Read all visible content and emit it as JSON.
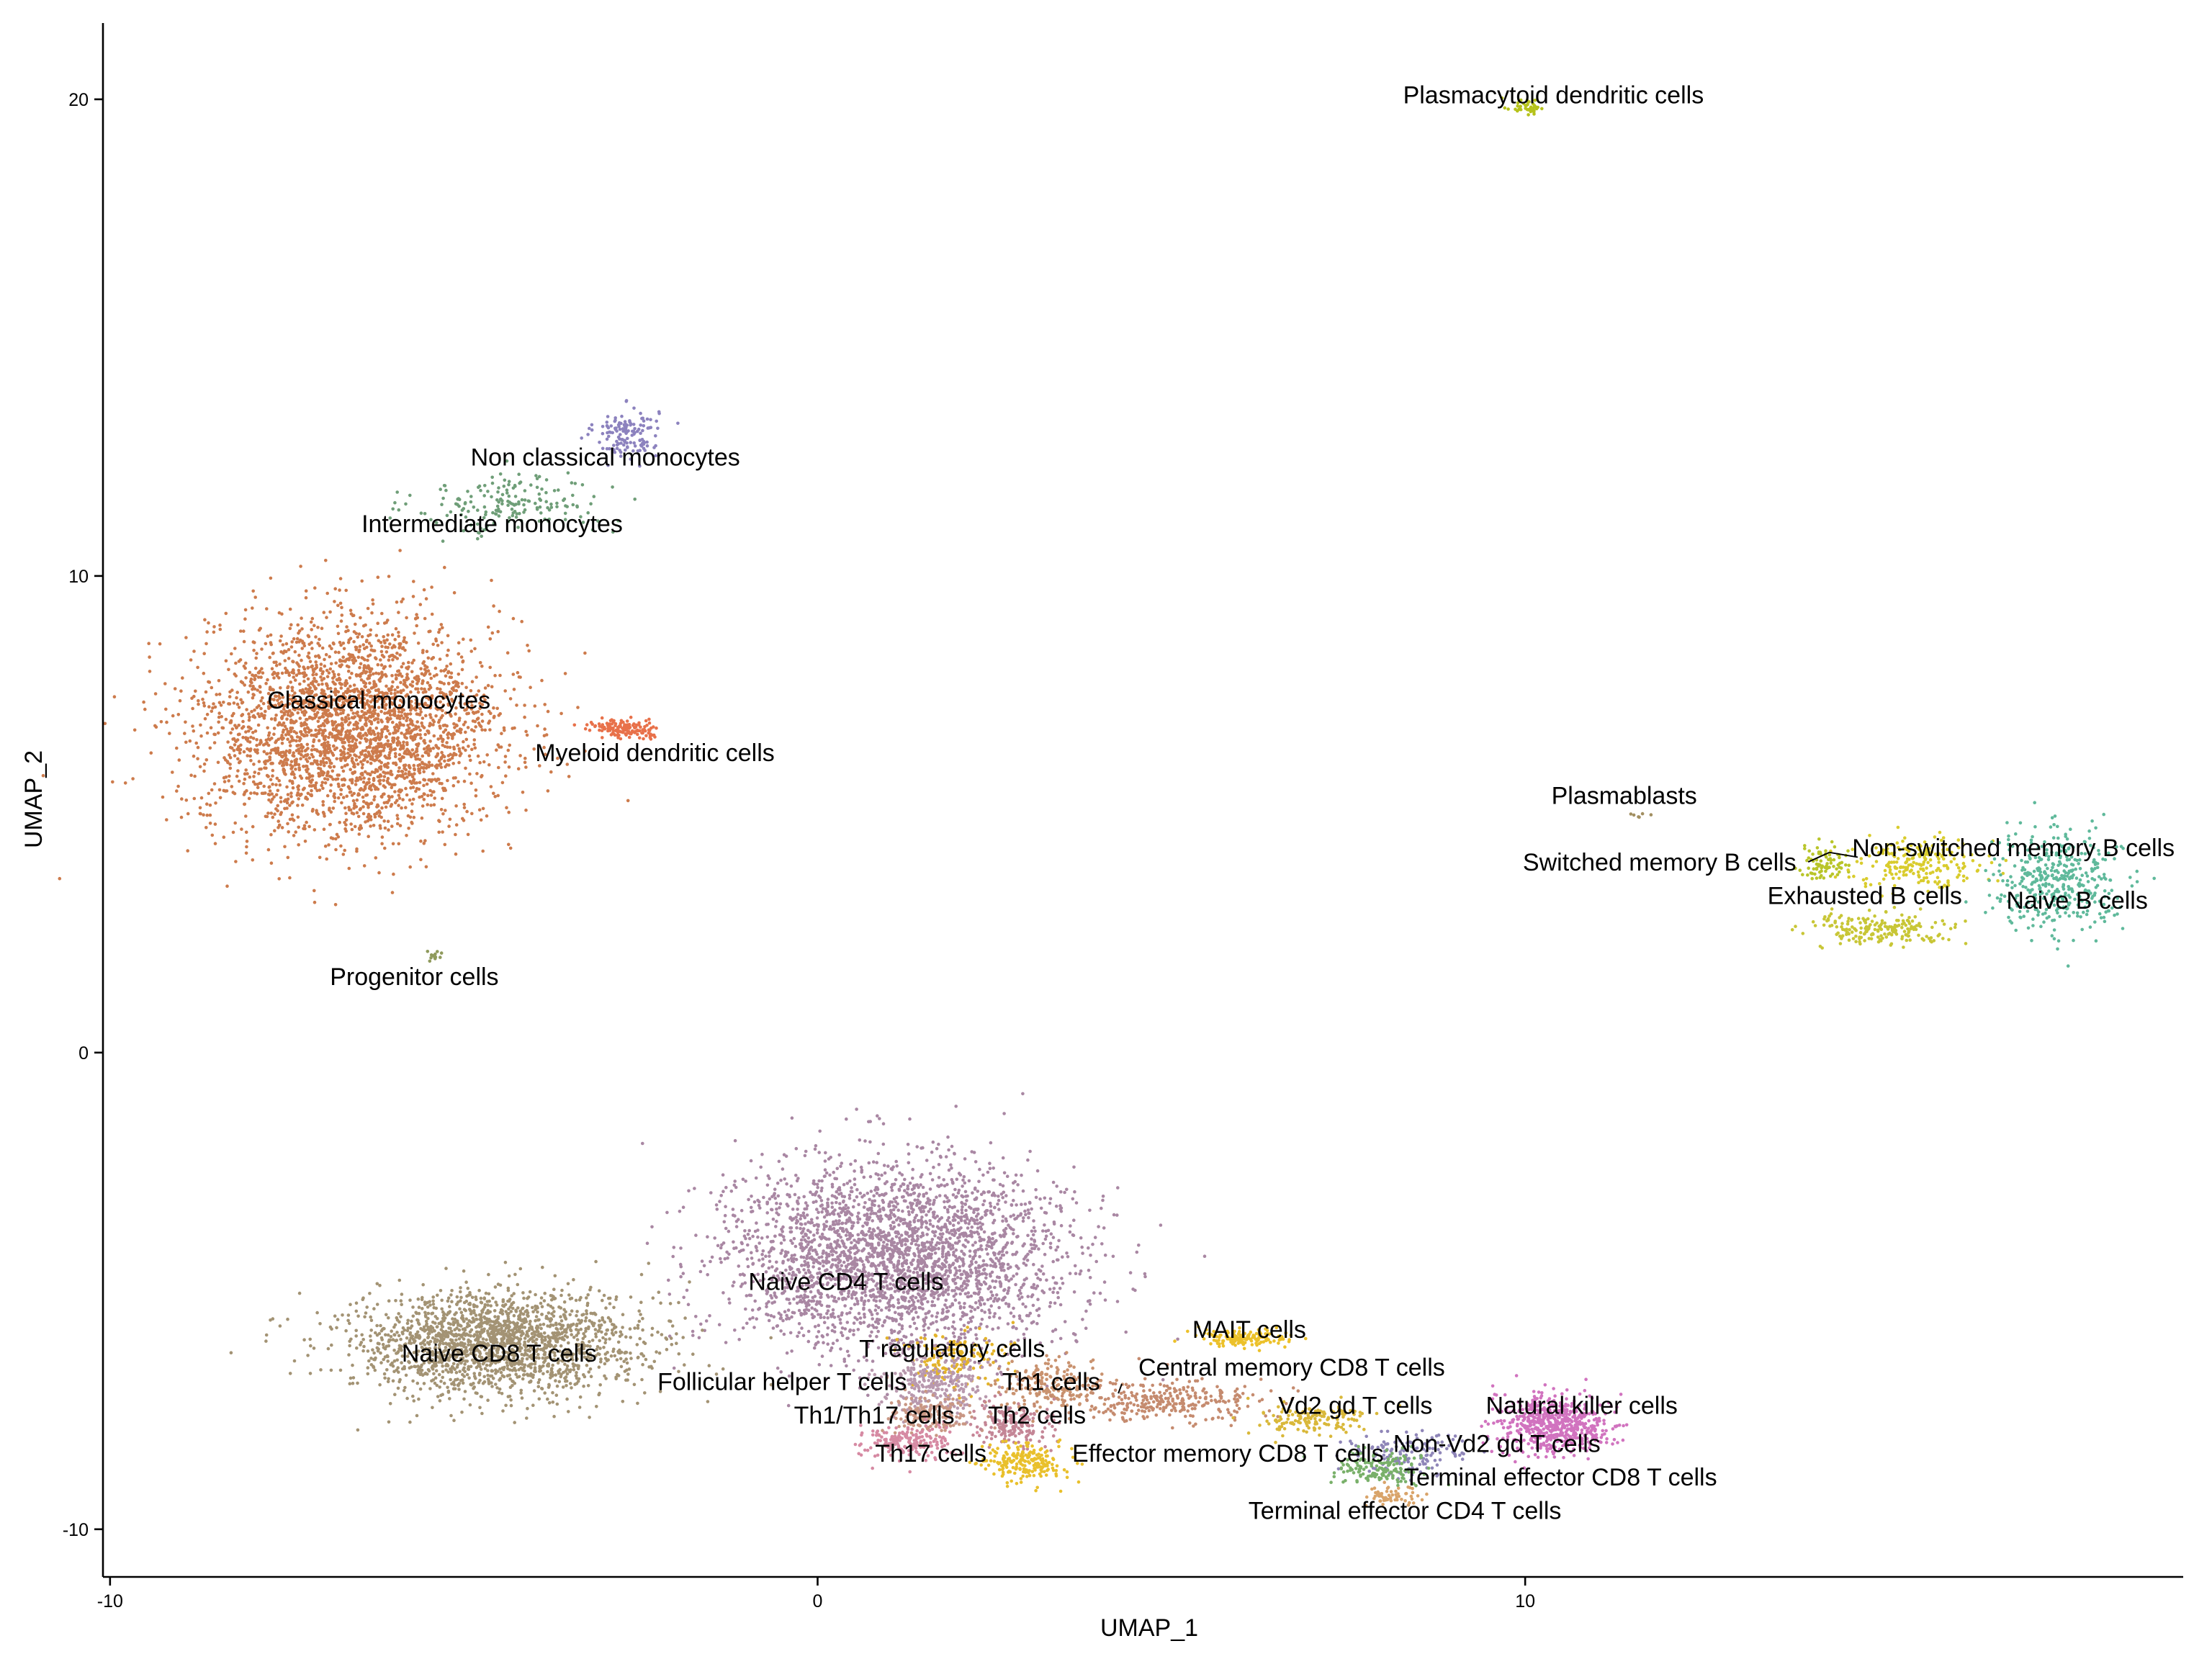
{
  "chart_data": {
    "type": "scatter",
    "title": "",
    "xlabel": "UMAP_1",
    "ylabel": "UMAP_2",
    "xlim": [
      -10.1,
      19.3
    ],
    "ylim": [
      -11.0,
      21.6
    ],
    "xticks": [
      {
        "value": -10,
        "label": "-10"
      },
      {
        "value": 0,
        "label": "0"
      },
      {
        "value": 10,
        "label": "10"
      }
    ],
    "yticks": [
      {
        "value": -10,
        "label": "-10"
      },
      {
        "value": 0,
        "label": "0"
      },
      {
        "value": 10,
        "label": "10"
      },
      {
        "value": 20,
        "label": "20"
      }
    ],
    "grid": false,
    "legend": "none",
    "clusters": [
      {
        "name": "Plasmacytoid dendritic cells",
        "color": "#b5c21b",
        "center": [
          10.0,
          19.85
        ],
        "spread": [
          0.18,
          0.12
        ],
        "n": 40,
        "label_pos": [
          10.4,
          20.1
        ]
      },
      {
        "name": "Non classical monocytes",
        "color": "#8c82be",
        "center": [
          -2.7,
          13.0
        ],
        "spread": [
          0.3,
          0.35
        ],
        "n": 140,
        "label_pos": [
          -3.0,
          12.5
        ]
      },
      {
        "name": "Intermediate monocytes",
        "color": "#6f9e78",
        "center": [
          -4.3,
          11.5
        ],
        "spread": [
          0.9,
          0.45
        ],
        "n": 180,
        "label_pos": [
          -4.6,
          11.1
        ]
      },
      {
        "name": "Classical monocytes",
        "color": "#cd7b4c",
        "center": [
          -6.6,
          6.8
        ],
        "spread": [
          1.4,
          1.5
        ],
        "n": 3000,
        "label_pos": [
          -6.2,
          7.4
        ]
      },
      {
        "name": "Myeloid dendritic cells",
        "color": "#e8714a",
        "center": [
          -2.7,
          6.8
        ],
        "spread": [
          0.35,
          0.12
        ],
        "n": 140,
        "label_pos": [
          -2.3,
          6.3
        ]
      },
      {
        "name": "Progenitor cells",
        "color": "#8f9a5c",
        "center": [
          -5.4,
          2.0
        ],
        "spread": [
          0.06,
          0.12
        ],
        "n": 12,
        "label_pos": [
          -5.7,
          1.6
        ]
      },
      {
        "name": "Plasmablasts",
        "color": "#a28f61",
        "center": [
          11.7,
          5.0
        ],
        "spread": [
          0.15,
          0.05
        ],
        "n": 6,
        "label_pos": [
          11.4,
          5.4
        ]
      },
      {
        "name": "Switched memory B cells",
        "color": "#b9c52a",
        "center": [
          14.2,
          4.0
        ],
        "spread": [
          0.22,
          0.25
        ],
        "n": 80,
        "label_pos": [
          11.9,
          4.0
        ]
      },
      {
        "name": "Non-switched memory B cells",
        "color": "#d9cc2d",
        "center": [
          15.6,
          4.0
        ],
        "spread": [
          0.6,
          0.35
        ],
        "n": 220,
        "label_pos": [
          16.9,
          4.3
        ]
      },
      {
        "name": "Exhausted B cells",
        "color": "#c8c636",
        "center": [
          15.0,
          2.6
        ],
        "spread": [
          0.7,
          0.2
        ],
        "n": 200,
        "label_pos": [
          14.8,
          3.3
        ]
      },
      {
        "name": "Naive B cells",
        "color": "#5fb99b",
        "center": [
          17.5,
          3.6
        ],
        "spread": [
          0.6,
          0.7
        ],
        "n": 420,
        "label_pos": [
          17.8,
          3.2
        ]
      },
      {
        "name": "Naive CD4 T cells",
        "color": "#a987a3",
        "center": [
          1.1,
          -4.3
        ],
        "spread": [
          1.6,
          1.3
        ],
        "n": 3000,
        "label_pos": [
          0.4,
          -4.8
        ]
      },
      {
        "name": "Naive CD8 T cells",
        "color": "#a39374",
        "center": [
          -4.6,
          -6.1
        ],
        "spread": [
          1.4,
          0.75
        ],
        "n": 1900,
        "label_pos": [
          -4.5,
          -6.3
        ]
      },
      {
        "name": "T regulatory cells",
        "color": "#e3b32b",
        "center": [
          1.9,
          -6.4
        ],
        "spread": [
          0.5,
          0.4
        ],
        "n": 150,
        "label_pos": [
          1.9,
          -6.2
        ]
      },
      {
        "name": "Follicular helper T cells",
        "color": "#b999ae",
        "center": [
          1.6,
          -7.0
        ],
        "spread": [
          0.5,
          0.4
        ],
        "n": 250,
        "label_pos": [
          -0.5,
          -6.9
        ]
      },
      {
        "name": "Th1 cells",
        "color": "#c9926f",
        "center": [
          3.3,
          -7.0
        ],
        "spread": [
          0.5,
          0.35
        ],
        "n": 200,
        "label_pos": [
          3.3,
          -6.9
        ]
      },
      {
        "name": "Th1/Th17 cells",
        "color": "#c99784",
        "center": [
          1.6,
          -7.6
        ],
        "spread": [
          0.4,
          0.3
        ],
        "n": 180,
        "label_pos": [
          0.8,
          -7.6
        ]
      },
      {
        "name": "Th2 cells",
        "color": "#c48696",
        "center": [
          2.8,
          -7.8
        ],
        "spread": [
          0.4,
          0.3
        ],
        "n": 180,
        "label_pos": [
          3.1,
          -7.6
        ]
      },
      {
        "name": "Th17 cells",
        "color": "#d68aa3",
        "center": [
          1.3,
          -8.2
        ],
        "spread": [
          0.45,
          0.25
        ],
        "n": 180,
        "label_pos": [
          1.6,
          -8.4
        ]
      },
      {
        "name": "Effector memory CD8 T cells",
        "color": "#e9c02c",
        "center": [
          2.9,
          -8.6
        ],
        "spread": [
          0.4,
          0.25
        ],
        "n": 220,
        "label_pos": [
          5.8,
          -8.4
        ]
      },
      {
        "name": "MAIT cells",
        "color": "#ecc12a",
        "center": [
          6.0,
          -6.0
        ],
        "spread": [
          0.45,
          0.12
        ],
        "n": 150,
        "label_pos": [
          6.1,
          -5.8
        ]
      },
      {
        "name": "Central memory CD8 T cells",
        "color": "#c58b6f",
        "center": [
          5.0,
          -7.3
        ],
        "spread": [
          0.9,
          0.3
        ],
        "n": 300,
        "label_pos": [
          6.7,
          -6.6
        ]
      },
      {
        "name": "Vd2 gd T cells",
        "color": "#d9b83a",
        "center": [
          7.0,
          -7.7
        ],
        "spread": [
          0.5,
          0.2
        ],
        "n": 150,
        "label_pos": [
          7.6,
          -7.4
        ]
      },
      {
        "name": "Natural killer cells",
        "color": "#d173bf",
        "center": [
          10.4,
          -7.8
        ],
        "spread": [
          0.55,
          0.4
        ],
        "n": 600,
        "label_pos": [
          10.8,
          -7.4
        ]
      },
      {
        "name": "Non-Vd2 gd T cells",
        "color": "#8f86b8",
        "center": [
          8.3,
          -8.4
        ],
        "spread": [
          0.5,
          0.3
        ],
        "n": 150,
        "label_pos": [
          9.6,
          -8.2
        ]
      },
      {
        "name": "Terminal effector CD8 T cells",
        "color": "#79b06a",
        "center": [
          7.9,
          -8.7
        ],
        "spread": [
          0.45,
          0.25
        ],
        "n": 150,
        "label_pos": [
          10.5,
          -8.9
        ]
      },
      {
        "name": "Terminal effector CD4 T cells",
        "color": "#d9a46a",
        "center": [
          8.1,
          -9.3
        ],
        "spread": [
          0.25,
          0.15
        ],
        "n": 60,
        "label_pos": [
          8.3,
          -9.6
        ]
      }
    ],
    "leader_lines": [
      {
        "from": [
          14.0,
          4.0
        ],
        "to": [
          14.3,
          4.2
        ]
      },
      {
        "from": [
          14.3,
          4.2
        ],
        "to": [
          14.7,
          4.1
        ]
      },
      {
        "from": [
          4.25,
          -7.15
        ],
        "to": [
          4.3,
          -6.95
        ]
      }
    ]
  }
}
